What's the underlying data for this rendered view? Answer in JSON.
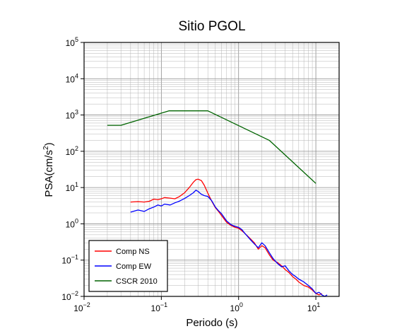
{
  "chart_data": {
    "type": "line",
    "title": "Sitio PGOL",
    "xlabel": "Periodo (s)",
    "ylabel": "PSA(cm/s",
    "ylabel_sup": "2",
    "ylabel_close": ")",
    "x_scale": "log",
    "y_scale": "log",
    "xlim": [
      0.01,
      20
    ],
    "ylim": [
      0.01,
      100000
    ],
    "grid": true,
    "legend_placement": "bottom-left",
    "x_ticks": [
      {
        "base": "10",
        "exp": "−2",
        "value": 0.01
      },
      {
        "base": "10",
        "exp": "−1",
        "value": 0.1
      },
      {
        "base": "10",
        "exp": "0",
        "value": 1
      },
      {
        "base": "10",
        "exp": "1",
        "value": 10
      }
    ],
    "y_ticks": [
      {
        "base": "10",
        "exp": "−2",
        "value": 0.01
      },
      {
        "base": "10",
        "exp": "−1",
        "value": 0.1
      },
      {
        "base": "10",
        "exp": "0",
        "value": 1
      },
      {
        "base": "10",
        "exp": "1",
        "value": 10
      },
      {
        "base": "10",
        "exp": "2",
        "value": 100
      },
      {
        "base": "10",
        "exp": "3",
        "value": 1000
      },
      {
        "base": "10",
        "exp": "4",
        "value": 10000
      },
      {
        "base": "10",
        "exp": "5",
        "value": 100000
      }
    ],
    "series": [
      {
        "name": "Comp NS",
        "color": "#ff0000",
        "points": [
          [
            0.04,
            4.0
          ],
          [
            0.05,
            4.1
          ],
          [
            0.06,
            4.0
          ],
          [
            0.07,
            4.2
          ],
          [
            0.08,
            4.8
          ],
          [
            0.09,
            4.6
          ],
          [
            0.1,
            4.9
          ],
          [
            0.11,
            5.3
          ],
          [
            0.13,
            5.1
          ],
          [
            0.15,
            4.9
          ],
          [
            0.17,
            5.6
          ],
          [
            0.2,
            7.2
          ],
          [
            0.23,
            10.0
          ],
          [
            0.26,
            14.0
          ],
          [
            0.28,
            16.5
          ],
          [
            0.3,
            17.0
          ],
          [
            0.33,
            15.5
          ],
          [
            0.36,
            11.5
          ],
          [
            0.4,
            7.0
          ],
          [
            0.45,
            4.2
          ],
          [
            0.5,
            2.8
          ],
          [
            0.55,
            2.2
          ],
          [
            0.6,
            1.7
          ],
          [
            0.7,
            1.1
          ],
          [
            0.8,
            0.9
          ],
          [
            0.9,
            0.8
          ],
          [
            1.0,
            0.75
          ],
          [
            1.1,
            0.65
          ],
          [
            1.2,
            0.55
          ],
          [
            1.4,
            0.4
          ],
          [
            1.6,
            0.3
          ],
          [
            1.8,
            0.2
          ],
          [
            2.0,
            0.25
          ],
          [
            2.2,
            0.22
          ],
          [
            2.5,
            0.14
          ],
          [
            2.8,
            0.1
          ],
          [
            3.2,
            0.085
          ],
          [
            3.6,
            0.07
          ],
          [
            4.0,
            0.055
          ],
          [
            4.5,
            0.045
          ],
          [
            5.0,
            0.035
          ],
          [
            5.5,
            0.03
          ],
          [
            6.0,
            0.025
          ],
          [
            7.0,
            0.02
          ],
          [
            8.0,
            0.018
          ],
          [
            9.0,
            0.015
          ],
          [
            10.0,
            0.012
          ],
          [
            11.0,
            0.011
          ],
          [
            12.0,
            0.012
          ]
        ]
      },
      {
        "name": "Comp EW",
        "color": "#0000ff",
        "points": [
          [
            0.04,
            2.1
          ],
          [
            0.05,
            2.4
          ],
          [
            0.06,
            2.2
          ],
          [
            0.07,
            2.6
          ],
          [
            0.08,
            2.9
          ],
          [
            0.09,
            3.3
          ],
          [
            0.1,
            3.1
          ],
          [
            0.11,
            3.5
          ],
          [
            0.13,
            3.3
          ],
          [
            0.15,
            3.8
          ],
          [
            0.17,
            4.2
          ],
          [
            0.2,
            5.0
          ],
          [
            0.23,
            6.0
          ],
          [
            0.26,
            7.2
          ],
          [
            0.28,
            8.5
          ],
          [
            0.3,
            7.8
          ],
          [
            0.33,
            6.5
          ],
          [
            0.36,
            6.0
          ],
          [
            0.4,
            5.7
          ],
          [
            0.45,
            4.3
          ],
          [
            0.5,
            2.9
          ],
          [
            0.55,
            2.3
          ],
          [
            0.6,
            1.9
          ],
          [
            0.7,
            1.2
          ],
          [
            0.8,
            0.95
          ],
          [
            0.9,
            0.85
          ],
          [
            1.0,
            0.8
          ],
          [
            1.1,
            0.7
          ],
          [
            1.2,
            0.55
          ],
          [
            1.4,
            0.38
          ],
          [
            1.6,
            0.28
          ],
          [
            1.8,
            0.22
          ],
          [
            2.0,
            0.3
          ],
          [
            2.2,
            0.25
          ],
          [
            2.5,
            0.16
          ],
          [
            2.8,
            0.11
          ],
          [
            3.2,
            0.08
          ],
          [
            3.6,
            0.065
          ],
          [
            4.0,
            0.07
          ],
          [
            4.5,
            0.05
          ],
          [
            5.0,
            0.04
          ],
          [
            5.5,
            0.035
          ],
          [
            6.0,
            0.03
          ],
          [
            7.0,
            0.025
          ],
          [
            8.0,
            0.02
          ],
          [
            9.0,
            0.016
          ],
          [
            10.0,
            0.012
          ],
          [
            11.0,
            0.013
          ],
          [
            12.0,
            0.011
          ],
          [
            13.0,
            0.01
          ],
          [
            14.0,
            0.011
          ]
        ]
      },
      {
        "name": "CSCR 2010",
        "color": "#006400",
        "points": [
          [
            0.02,
            520
          ],
          [
            0.03,
            520
          ],
          [
            0.125,
            1300
          ],
          [
            0.4,
            1300
          ],
          [
            2.5,
            200
          ],
          [
            10.0,
            13
          ]
        ]
      }
    ]
  }
}
